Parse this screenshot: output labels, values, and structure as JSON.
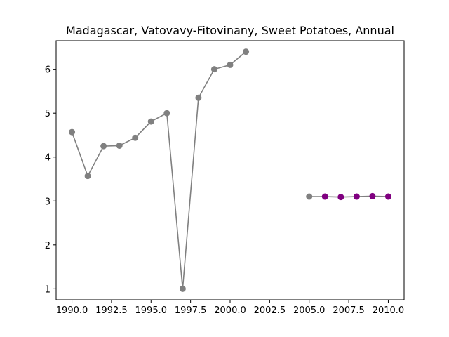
{
  "chart_data": {
    "type": "line",
    "title": "Madagascar, Vatovavy-Fitovinany, Sweet Potatoes, Annual",
    "xlabel": "",
    "ylabel": "",
    "xlim": [
      1989.0,
      2011.0
    ],
    "ylim": [
      0.75,
      6.65
    ],
    "x_ticks": [
      1990.0,
      1992.5,
      1995.0,
      1997.5,
      2000.0,
      2002.5,
      2005.0,
      2007.5,
      2010.0
    ],
    "x_tick_labels": [
      "1990.0",
      "1992.5",
      "1995.0",
      "1997.5",
      "2000.0",
      "2002.5",
      "2005.0",
      "2007.5",
      "2010.0"
    ],
    "y_ticks": [
      1,
      2,
      3,
      4,
      5,
      6
    ],
    "y_tick_labels": [
      "1",
      "2",
      "3",
      "4",
      "5",
      "6"
    ],
    "grid": false,
    "line_color": "#808080",
    "series": [
      {
        "color": "#808080",
        "x": [
          1990,
          1991,
          1992,
          1993,
          1994,
          1995,
          1996,
          1997,
          1998,
          1999,
          2000,
          2001
        ],
        "y": [
          4.57,
          3.57,
          4.25,
          4.26,
          4.44,
          4.81,
          5.0,
          1.0,
          5.35,
          6.0,
          6.1,
          6.4
        ]
      },
      {
        "color": "#808080",
        "x": [
          2005
        ],
        "y": [
          3.1
        ]
      },
      {
        "color": "#800080",
        "x": [
          2006,
          2007,
          2008,
          2009,
          2010
        ],
        "y": [
          3.1,
          3.09,
          3.1,
          3.11,
          3.1
        ]
      }
    ],
    "connector": {
      "color": "#808080",
      "x": [
        2005,
        2006,
        2007,
        2008,
        2009,
        2010
      ],
      "y": [
        3.1,
        3.1,
        3.09,
        3.1,
        3.11,
        3.1
      ]
    }
  }
}
